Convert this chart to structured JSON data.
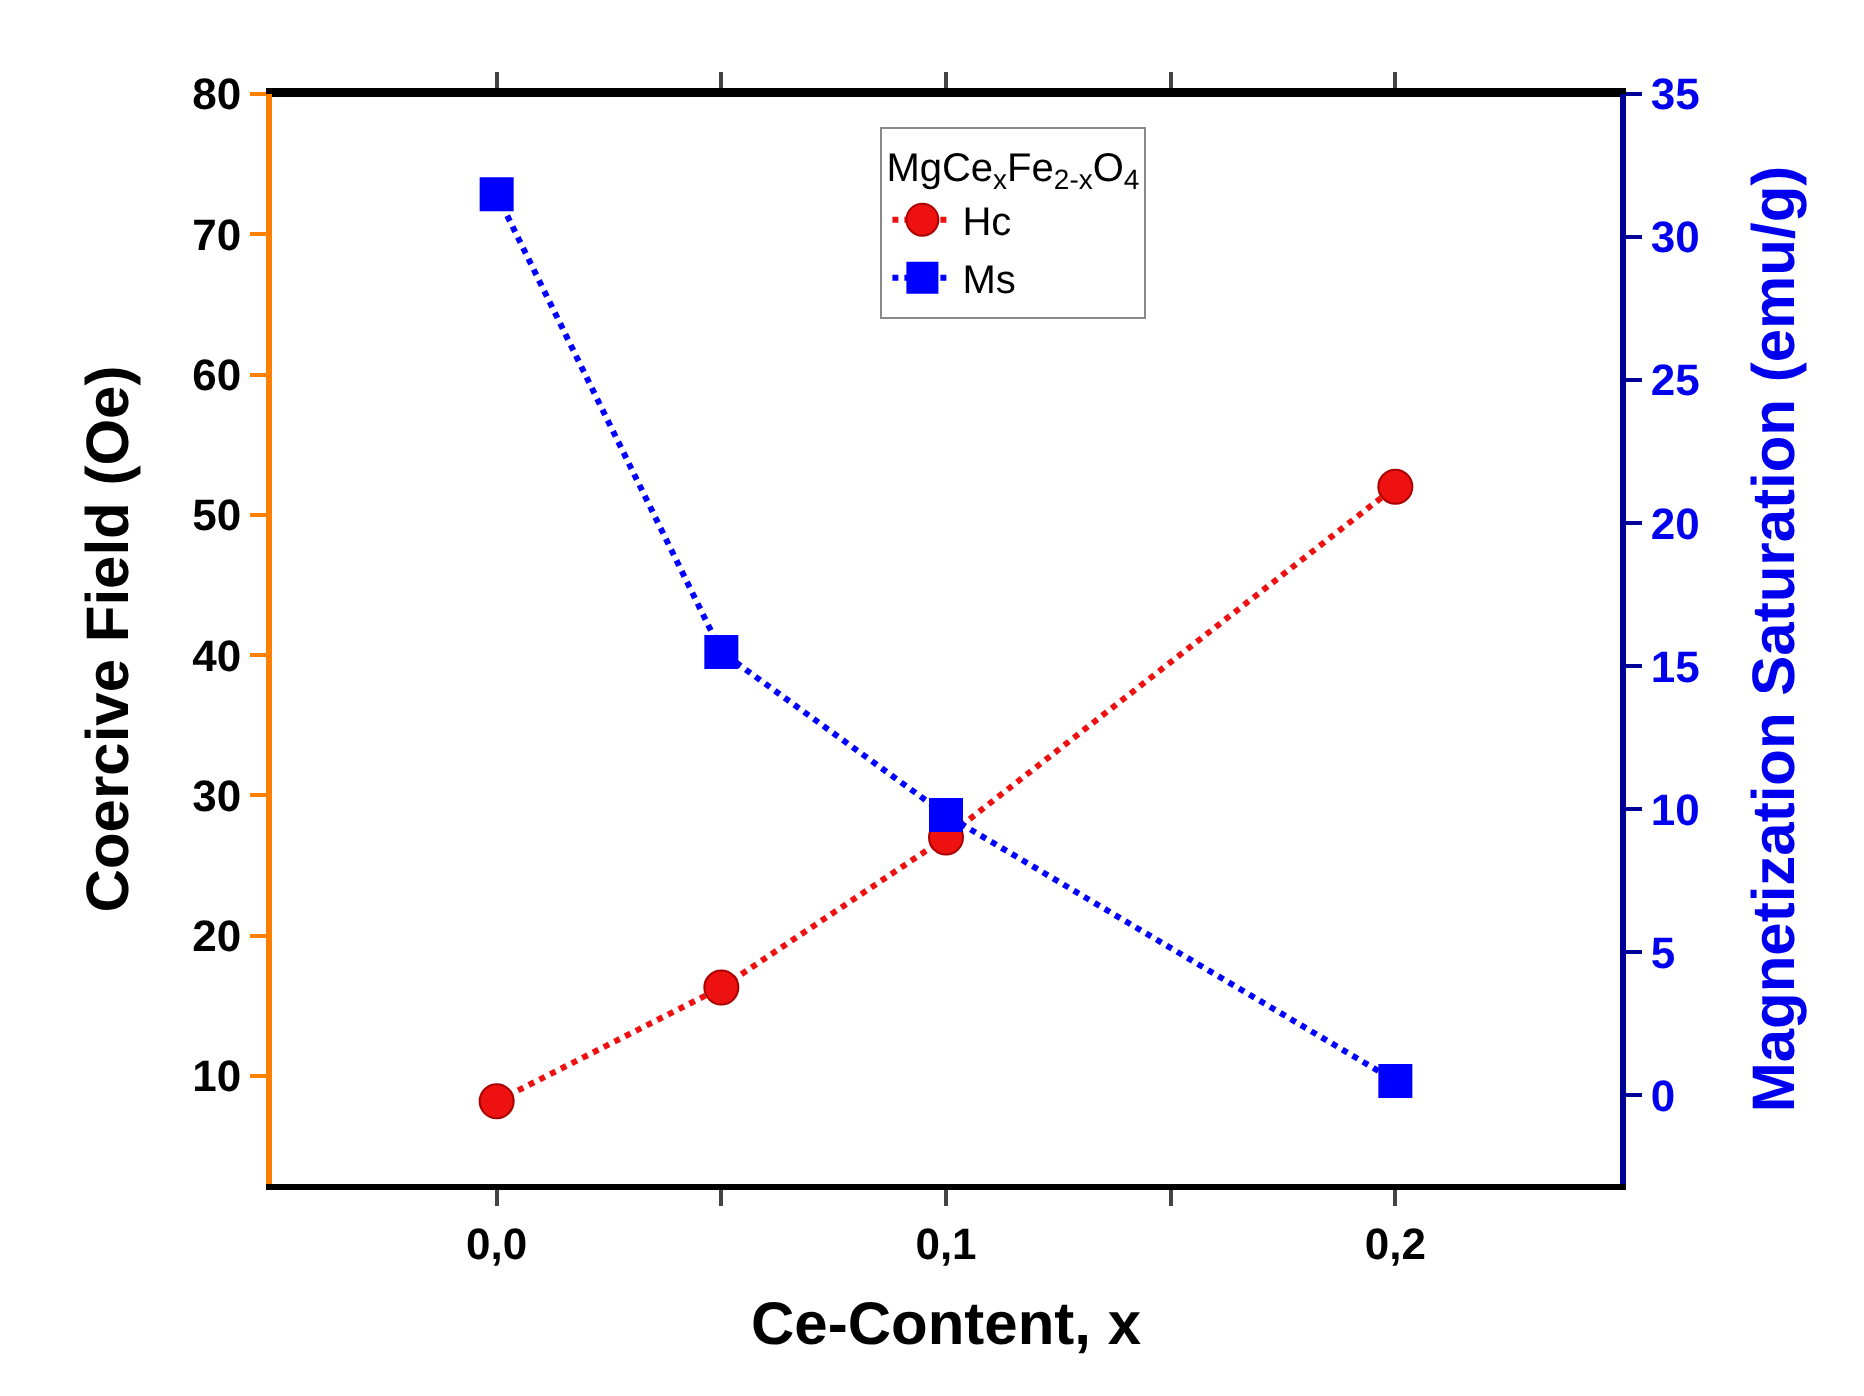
{
  "chart_data": {
    "type": "line",
    "xlabel": "Ce-Content, x",
    "ylabel": "Coercive Field (Oe)",
    "y2label": "Magnetization Saturation (emu/g)",
    "legend_title": "MgCe$_{x}$Fe$_{2-x}$O$_{4}$",
    "x": [
      0,
      0.05,
      0.1,
      0.2
    ],
    "series": [
      {
        "name": "Hc",
        "color": "#ee1111",
        "values": [
          8.2,
          16.3,
          27,
          52
        ],
        "marker": "circle"
      },
      {
        "name": "Ms",
        "color": "#0000ff",
        "values": [
          31.5,
          15.5,
          9.8,
          0.5
        ],
        "marker": "square",
        "axis": "y2"
      }
    ],
    "xlim": [
      -0.05,
      0.25
    ],
    "xticks": [
      {
        "value": 0,
        "label": "0,0"
      },
      {
        "value": 0.05,
        "label": null
      },
      {
        "value": 0.1,
        "label": "0,1"
      },
      {
        "value": 0.15,
        "label": null
      },
      {
        "value": 0.2,
        "label": "0,2"
      }
    ],
    "ylim": [
      2.3,
      80
    ],
    "yticks": [
      10,
      20,
      30,
      40,
      50,
      60,
      70,
      80
    ],
    "y2lim": [
      -3.1,
      35
    ],
    "y2ticks": [
      0,
      5,
      10,
      15,
      20,
      25,
      30,
      35
    ],
    "line_style": "dotted",
    "grid": false,
    "legend": "top"
  }
}
